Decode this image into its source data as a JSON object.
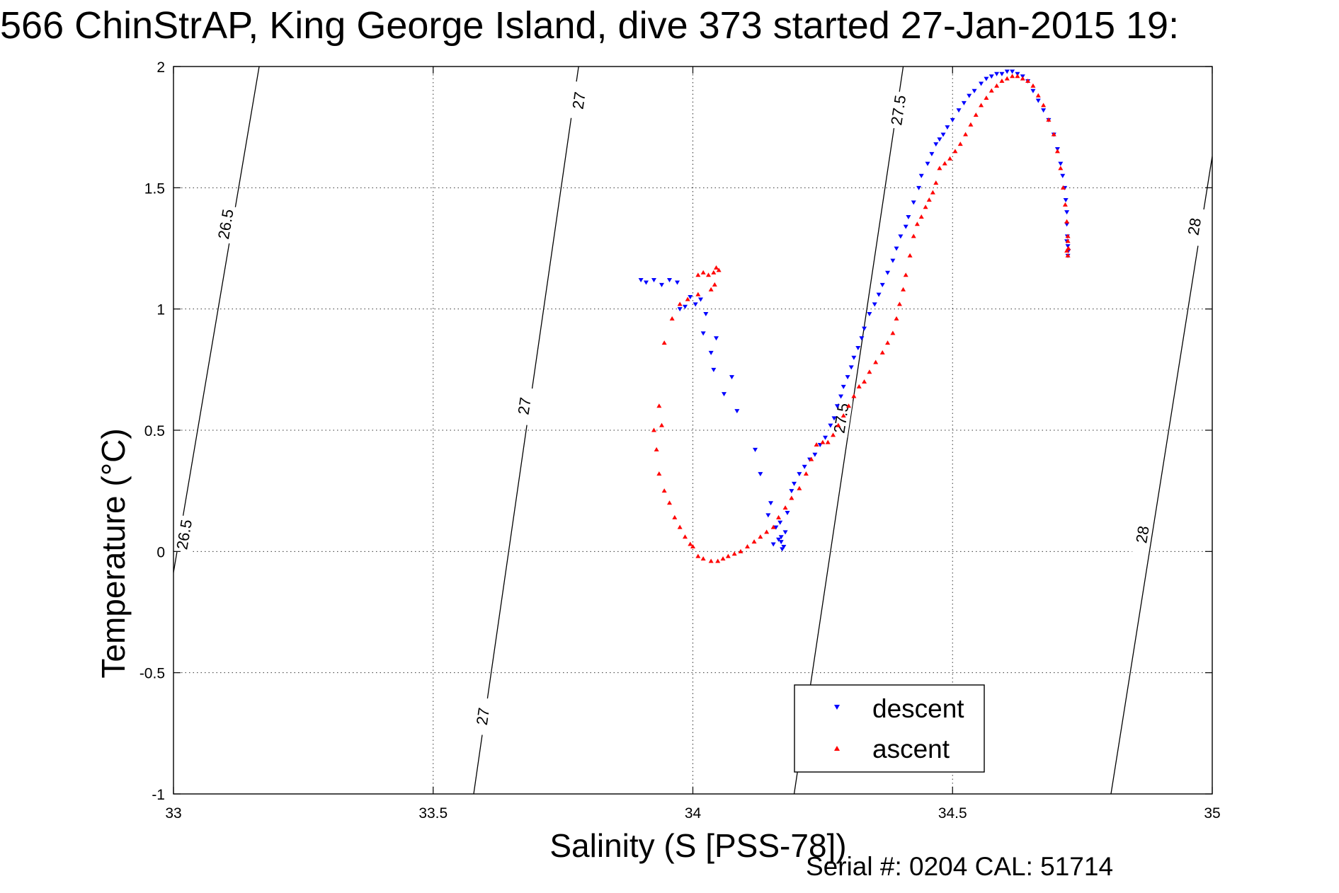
{
  "title": "566 ChinStrAP, King George Island, dive 373 started 27-Jan-2015 19:",
  "footer": "Serial #: 0204  CAL: 51714",
  "colors": {
    "descent": "#0000ff",
    "ascent": "#ff0000",
    "axes": "#000000",
    "grid": "#000000"
  },
  "chart_data": {
    "type": "scatter",
    "xlabel": "Salinity (S [PSS-78])",
    "ylabel": "Temperature (°C)",
    "xlim": [
      33,
      35
    ],
    "ylim": [
      -1,
      2
    ],
    "grid": true,
    "legend_position": "bottom-center",
    "x_ticks": [
      33,
      33.5,
      34,
      34.5,
      35
    ],
    "x_tick_labels": [
      "33",
      "33.5",
      "34",
      "34.5",
      "35"
    ],
    "y_ticks": [
      -1,
      -0.5,
      0,
      0.5,
      1,
      1.5,
      2
    ],
    "y_tick_labels": [
      "-1",
      "-0.5",
      "0",
      "0.5",
      "1",
      "1.5",
      "2"
    ],
    "isopycnals": [
      {
        "label": "26.5",
        "points": [
          [
            32.995,
            -0.15
          ],
          [
            33.165,
            2.0
          ]
        ],
        "labels_at": [
          [
            33.02,
            0.07
          ],
          [
            33.1,
            1.35
          ]
        ]
      },
      {
        "label": "27",
        "points": [
          [
            33.578,
            -1.0
          ],
          [
            33.78,
            2.0
          ]
        ],
        "labels_at": [
          [
            33.595,
            -0.68
          ],
          [
            33.675,
            0.6
          ],
          [
            33.78,
            1.86
          ]
        ]
      },
      {
        "label": "27.5",
        "points": [
          [
            34.195,
            -1.0
          ],
          [
            34.405,
            2.0
          ]
        ],
        "labels_at": [
          [
            34.285,
            0.55
          ],
          [
            34.395,
            1.82
          ]
        ]
      },
      {
        "label": "28",
        "points": [
          [
            34.805,
            -1.0
          ],
          [
            35.0,
            1.63
          ]
        ],
        "labels_at": [
          [
            34.865,
            0.07
          ],
          [
            34.965,
            1.34
          ]
        ]
      }
    ],
    "series": [
      {
        "name": "descent",
        "marker": "triangle-down",
        "x": [
          33.9,
          33.91,
          33.925,
          33.94,
          33.955,
          33.97,
          33.975,
          33.985,
          33.995,
          34.005,
          34.015,
          34.025,
          34.02,
          34.035,
          34.045,
          34.04,
          34.06,
          34.075,
          34.085,
          34.12,
          34.13,
          34.145,
          34.15,
          34.16,
          34.168,
          34.155,
          34.17,
          34.172,
          34.178,
          34.17,
          34.175,
          34.165,
          34.182,
          34.19,
          34.195,
          34.205,
          34.215,
          34.225,
          34.235,
          34.245,
          34.255,
          34.265,
          34.272,
          34.278,
          34.285,
          34.29,
          34.298,
          34.305,
          34.31,
          34.318,
          34.325,
          34.33,
          34.34,
          34.35,
          34.358,
          34.365,
          34.375,
          34.385,
          34.392,
          34.4,
          34.41,
          34.415,
          34.425,
          34.435,
          34.44,
          34.452,
          34.46,
          34.468,
          34.475,
          34.482,
          34.49,
          34.5,
          34.512,
          34.522,
          34.532,
          34.542,
          34.555,
          34.565,
          34.575,
          34.585,
          34.595,
          34.605,
          34.615,
          34.625,
          34.635,
          34.645,
          34.655,
          34.665,
          34.675,
          34.685,
          34.695,
          34.702,
          34.708,
          34.712,
          34.716,
          34.718,
          34.72,
          34.72,
          34.721,
          34.722,
          34.723,
          34.722,
          34.72
        ],
        "y": [
          1.12,
          1.11,
          1.12,
          1.1,
          1.12,
          1.11,
          1.0,
          1.01,
          1.05,
          1.02,
          1.04,
          0.98,
          0.9,
          0.82,
          0.88,
          0.75,
          0.65,
          0.72,
          0.58,
          0.42,
          0.32,
          0.15,
          0.2,
          0.1,
          0.12,
          0.03,
          0.04,
          0.01,
          0.08,
          0.06,
          0.02,
          0.05,
          0.16,
          0.25,
          0.28,
          0.32,
          0.35,
          0.38,
          0.4,
          0.44,
          0.47,
          0.52,
          0.55,
          0.6,
          0.64,
          0.68,
          0.72,
          0.76,
          0.8,
          0.84,
          0.88,
          0.92,
          0.98,
          1.02,
          1.06,
          1.1,
          1.15,
          1.2,
          1.25,
          1.3,
          1.34,
          1.38,
          1.44,
          1.5,
          1.55,
          1.6,
          1.64,
          1.68,
          1.7,
          1.72,
          1.75,
          1.78,
          1.82,
          1.85,
          1.88,
          1.9,
          1.93,
          1.95,
          1.96,
          1.97,
          1.97,
          1.98,
          1.98,
          1.97,
          1.96,
          1.94,
          1.9,
          1.86,
          1.82,
          1.78,
          1.72,
          1.66,
          1.6,
          1.55,
          1.5,
          1.45,
          1.4,
          1.35,
          1.3,
          1.26,
          1.24,
          1.22,
          1.28
        ]
      },
      {
        "name": "ascent",
        "marker": "triangle-up",
        "x": [
          34.01,
          34.02,
          34.03,
          34.04,
          34.045,
          34.05,
          34.042,
          34.035,
          34.01,
          33.99,
          33.975,
          33.96,
          33.945,
          33.935,
          33.94,
          33.925,
          33.93,
          33.935,
          33.945,
          33.955,
          33.965,
          33.975,
          33.985,
          33.995,
          34.0,
          34.01,
          34.02,
          34.035,
          34.048,
          34.058,
          34.068,
          34.08,
          34.092,
          34.105,
          34.118,
          34.13,
          34.142,
          34.155,
          34.165,
          34.178,
          34.19,
          34.205,
          34.218,
          34.228,
          34.238,
          34.25,
          34.26,
          34.27,
          34.28,
          34.29,
          34.3,
          34.31,
          34.32,
          34.33,
          34.34,
          34.352,
          34.365,
          34.375,
          34.385,
          34.392,
          34.398,
          34.405,
          34.41,
          34.418,
          34.425,
          34.432,
          34.44,
          34.448,
          34.455,
          34.462,
          34.468,
          34.475,
          34.485,
          34.495,
          34.505,
          34.515,
          34.525,
          34.535,
          34.545,
          34.555,
          34.565,
          34.575,
          34.585,
          34.595,
          34.605,
          34.615,
          34.625,
          34.635,
          34.645,
          34.655,
          34.665,
          34.675,
          34.685,
          34.695,
          34.702,
          34.708,
          34.713,
          34.717,
          34.72,
          34.722,
          34.723,
          34.722,
          34.72,
          34.722
        ],
        "y": [
          1.14,
          1.15,
          1.14,
          1.15,
          1.17,
          1.16,
          1.1,
          1.08,
          1.06,
          1.04,
          1.02,
          0.96,
          0.86,
          0.6,
          0.52,
          0.5,
          0.42,
          0.32,
          0.25,
          0.2,
          0.14,
          0.1,
          0.06,
          0.03,
          0.02,
          -0.02,
          -0.03,
          -0.04,
          -0.04,
          -0.03,
          -0.02,
          -0.01,
          0.0,
          0.02,
          0.04,
          0.06,
          0.08,
          0.1,
          0.14,
          0.18,
          0.22,
          0.26,
          0.32,
          0.38,
          0.44,
          0.45,
          0.45,
          0.48,
          0.52,
          0.56,
          0.6,
          0.64,
          0.68,
          0.7,
          0.74,
          0.78,
          0.82,
          0.86,
          0.9,
          0.96,
          1.02,
          1.08,
          1.14,
          1.22,
          1.3,
          1.35,
          1.38,
          1.42,
          1.45,
          1.48,
          1.52,
          1.58,
          1.6,
          1.62,
          1.65,
          1.68,
          1.72,
          1.76,
          1.8,
          1.84,
          1.87,
          1.9,
          1.92,
          1.94,
          1.95,
          1.96,
          1.96,
          1.95,
          1.94,
          1.92,
          1.88,
          1.84,
          1.78,
          1.72,
          1.65,
          1.58,
          1.5,
          1.43,
          1.36,
          1.3,
          1.25,
          1.22,
          1.24,
          1.28
        ]
      }
    ]
  }
}
